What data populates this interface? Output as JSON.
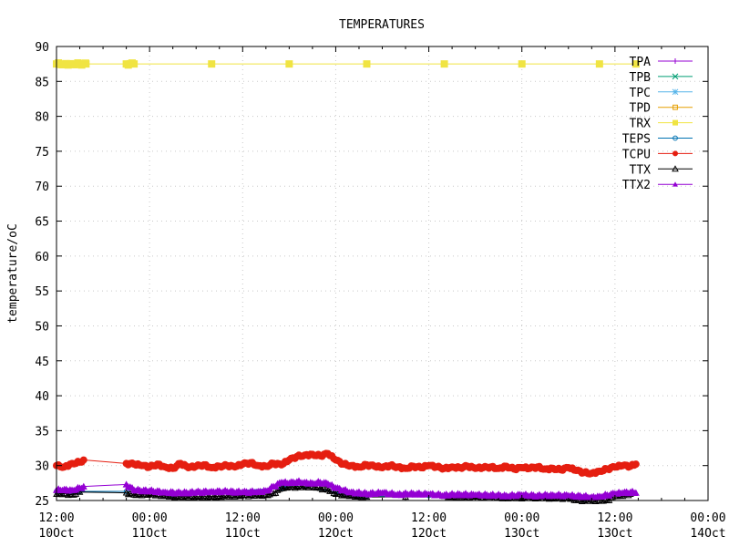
{
  "chart_data": {
    "type": "line",
    "title": "TEMPERATURES",
    "xlabel": "",
    "ylabel": "temperature/oC",
    "ylim": [
      25,
      90
    ],
    "xlim": [
      "10 Oct 12:00",
      "14 Oct 00:00"
    ],
    "grid": true,
    "legend_position": "top-right",
    "y_ticks": [
      "25",
      "30",
      "35",
      "40",
      "45",
      "50",
      "55",
      "60",
      "65",
      "70",
      "75",
      "80",
      "85",
      "90"
    ],
    "x_ticks": [
      {
        "time": "12:00",
        "date": "10Oct"
      },
      {
        "time": "00:00",
        "date": "11Oct"
      },
      {
        "time": "12:00",
        "date": "11Oct"
      },
      {
        "time": "00:00",
        "date": "12Oct"
      },
      {
        "time": "12:00",
        "date": "12Oct"
      },
      {
        "time": "00:00",
        "date": "13Oct"
      },
      {
        "time": "12:00",
        "date": "13Oct"
      },
      {
        "time": "00:00",
        "date": "14Oct"
      }
    ],
    "x_tick_hours": [
      0,
      12,
      24,
      36,
      48,
      60,
      72,
      84
    ],
    "series": [
      {
        "name": "TPA",
        "color": "#9400d3",
        "marker": "plus",
        "x_hours": [],
        "values": []
      },
      {
        "name": "TPB",
        "color": "#009e73",
        "marker": "cross",
        "x_hours": [],
        "values": []
      },
      {
        "name": "TPC",
        "color": "#56b4e9",
        "marker": "star",
        "x_hours": [],
        "values": []
      },
      {
        "name": "TPD",
        "color": "#e69f00",
        "marker": "open-square",
        "x_hours": [],
        "values": []
      },
      {
        "name": "TRX",
        "color": "#f0e442",
        "marker": "filled-square",
        "x_hours": [
          0,
          1,
          2,
          3,
          3.8,
          9,
          10,
          20,
          30,
          40,
          50,
          60,
          70,
          74.7
        ],
        "values": [
          87.5,
          87.5,
          87.5,
          87.5,
          87.5,
          87.5,
          87.5,
          87.5,
          87.5,
          87.5,
          87.5,
          87.5,
          87.5,
          87.5
        ]
      },
      {
        "name": "TEPS",
        "color": "#0072b2",
        "marker": "open-circle",
        "x_hours": [
          0,
          3,
          9,
          15,
          21,
          29,
          30,
          36,
          40,
          48,
          60,
          68,
          74
        ],
        "values": [
          26.3,
          26.3,
          26.3,
          25.8,
          26.2,
          26.8,
          27.2,
          26.2,
          25.6,
          25.7,
          25.5,
          25.2,
          26.0
        ]
      },
      {
        "name": "TCPU",
        "color": "#e51e10",
        "marker": "filled-circle",
        "x_hours": [
          0,
          1,
          2,
          3,
          3.5,
          9,
          10,
          11,
          12,
          13,
          14,
          15,
          16,
          17,
          18,
          19,
          20,
          21,
          22,
          23,
          24,
          25,
          26,
          27,
          28,
          29,
          30,
          31,
          32,
          33,
          34,
          35,
          36,
          37,
          38,
          39,
          40,
          41,
          42,
          43,
          44,
          45,
          46,
          47,
          48,
          49,
          50,
          51,
          52,
          53,
          54,
          55,
          56,
          57,
          58,
          59,
          60,
          61,
          62,
          63,
          64,
          65,
          66,
          67,
          68,
          69,
          70,
          71,
          72,
          73,
          74,
          74.7
        ],
        "values": [
          30.0,
          29.8,
          30.3,
          30.5,
          30.8,
          30.3,
          30.2,
          30.0,
          29.8,
          30.2,
          29.8,
          29.6,
          30.3,
          29.7,
          29.9,
          30.1,
          29.7,
          29.9,
          30.0,
          29.8,
          30.2,
          30.4,
          30.0,
          29.9,
          30.3,
          30.1,
          30.8,
          31.3,
          31.5,
          31.6,
          31.4,
          31.7,
          30.8,
          30.2,
          30.0,
          29.8,
          30.1,
          29.9,
          29.7,
          30.0,
          29.8,
          29.6,
          29.9,
          29.7,
          30.0,
          29.8,
          29.6,
          29.8,
          29.7,
          29.9,
          29.6,
          29.7,
          29.8,
          29.6,
          29.9,
          29.5,
          29.7,
          29.6,
          29.8,
          29.5,
          29.6,
          29.4,
          29.7,
          29.3,
          29.0,
          28.9,
          29.2,
          29.5,
          29.8,
          30.0,
          29.9,
          30.2
        ]
      },
      {
        "name": "TTX",
        "color": "#000000",
        "marker": "open-triangle",
        "x_hours": [
          0,
          1,
          2,
          3,
          9,
          10,
          12,
          15,
          18,
          21,
          24,
          27,
          28,
          29,
          30,
          33,
          35,
          36,
          40,
          45,
          50,
          54,
          58,
          62,
          66,
          67,
          68,
          70,
          71,
          72,
          74
        ],
        "values": [
          25.9,
          26.0,
          25.8,
          26.2,
          26.1,
          25.8,
          25.9,
          25.6,
          25.5,
          25.6,
          25.7,
          25.8,
          26.0,
          26.7,
          26.9,
          27.0,
          26.5,
          25.9,
          25.5,
          25.5,
          25.6,
          25.5,
          25.4,
          25.4,
          25.3,
          25.0,
          25.0,
          25.0,
          25.0,
          25.6,
          25.9
        ]
      },
      {
        "name": "TTX2",
        "color": "#9400d3",
        "marker": "filled-triangle",
        "x_hours": [
          0,
          1,
          2,
          3,
          3.5,
          9,
          10,
          12,
          14,
          16,
          18,
          20,
          22,
          24,
          26,
          27,
          28,
          29,
          30,
          31,
          32,
          33,
          34,
          35,
          36,
          38,
          40,
          42,
          44,
          46,
          48,
          50,
          52,
          54,
          56,
          58,
          60,
          62,
          64,
          66,
          68,
          69,
          70,
          71,
          72,
          73,
          74,
          74.7
        ],
        "values": [
          26.5,
          26.6,
          26.5,
          26.8,
          27.0,
          27.3,
          26.5,
          26.4,
          26.2,
          26.1,
          26.2,
          26.3,
          26.3,
          26.2,
          26.3,
          26.4,
          27.0,
          27.6,
          27.5,
          27.7,
          27.6,
          27.5,
          27.6,
          27.4,
          26.8,
          26.2,
          26.0,
          26.1,
          25.9,
          26.0,
          25.9,
          25.8,
          25.9,
          25.8,
          25.8,
          25.7,
          25.8,
          25.7,
          25.8,
          25.7,
          25.6,
          25.5,
          25.6,
          25.8,
          26.0,
          26.1,
          26.2,
          26.1
        ]
      }
    ]
  }
}
